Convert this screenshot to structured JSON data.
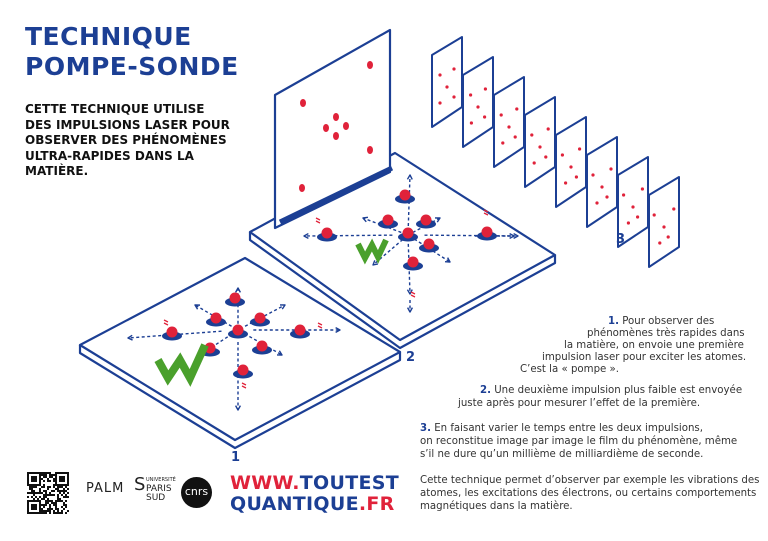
{
  "title": {
    "line1": "TECHNIQUE",
    "line2": "POMPE-SONDE"
  },
  "subtitle": [
    "CETTE TECHNIQUE UTILISE",
    "DES IMPULSIONS LASER POUR",
    "OBSERVER DES PHÉNOMÈNES",
    "ULTRA-RAPIDES DANS LA",
    "MATIÈRE."
  ],
  "step_labels": [
    "1",
    "2",
    "3"
  ],
  "paragraphs": {
    "p1": {
      "num": "1.",
      "lines": [
        "Pour observer des",
        "phénomènes très rapides dans",
        "la matière, on envoie une première",
        "impulsion laser pour exciter les atomes.",
        "C’est la « pompe »."
      ]
    },
    "p2": {
      "num": "2.",
      "lines": [
        "Une deuxième impulsion plus faible est envoyée",
        "juste après pour mesurer l’effet de la première."
      ]
    },
    "p3": {
      "num": "3.",
      "lines": [
        "En faisant varier le temps entre les deux impulsions,",
        "on reconstitue image par image le film du phénomène, même",
        "s’il ne dure qu’un millième de milliardième de seconde."
      ]
    },
    "p4": {
      "lines": [
        "Cette technique permet d’observer par exemple les vibrations des",
        "atomes, les excitations des électrons, ou certains comportements",
        "magnétiques dans la matière."
      ]
    }
  },
  "logos": {
    "palm": "PALM",
    "paris_sud": [
      "UNIVERSITÉ",
      "PARIS",
      "SUD"
    ],
    "cnrs": "cnrs"
  },
  "url": {
    "part1_red": "WWW.",
    "part1_blue": "TOUTEST",
    "part2_blue": "QUANTIQUE",
    "part2_red": ".FR"
  },
  "colors": {
    "navy": "#1c3f94",
    "red": "#e0223a",
    "green": "#4aa02c"
  }
}
